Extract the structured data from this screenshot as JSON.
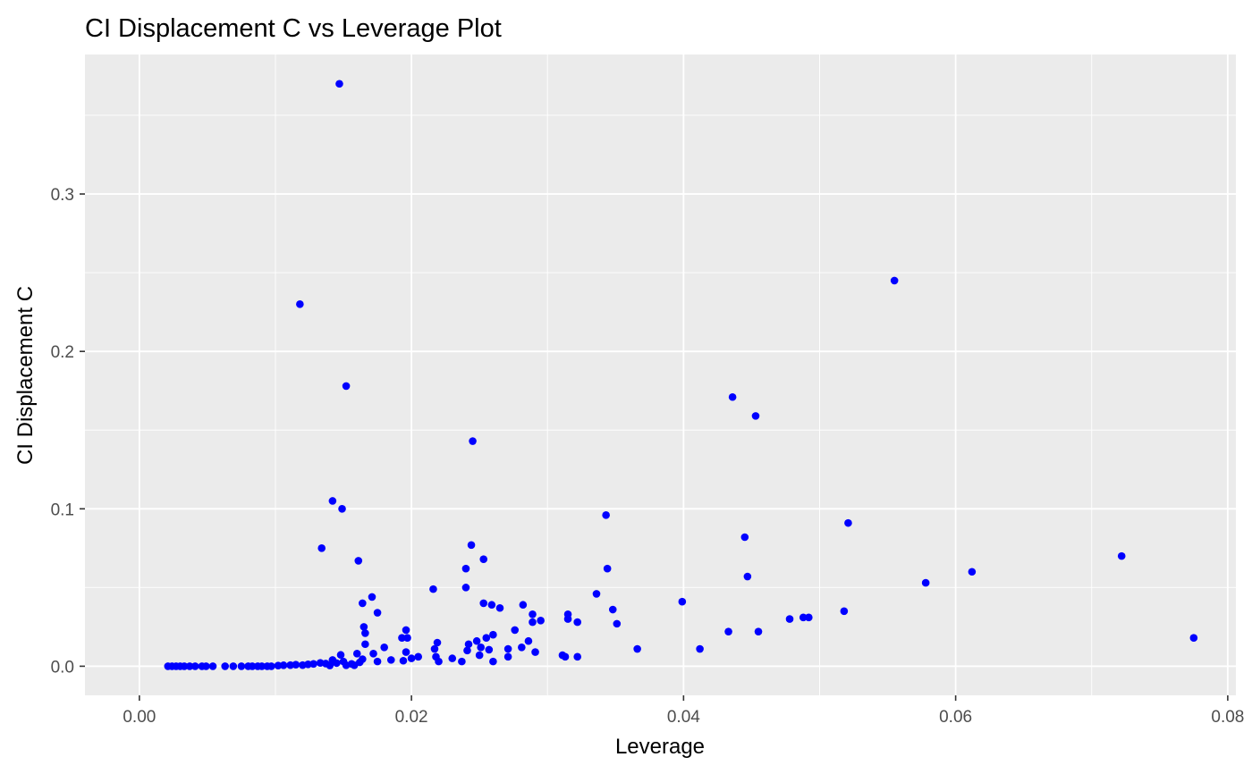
{
  "chart_data": {
    "type": "scatter",
    "title": "CI Displacement C vs Leverage Plot",
    "xlabel": "Leverage",
    "ylabel": "CI Displacement C",
    "xlim": [
      -0.004,
      0.0806
    ],
    "ylim": [
      -0.0185,
      0.3886
    ],
    "x_ticks": [
      0,
      0.02,
      0.04,
      0.06,
      0.08
    ],
    "x_tick_labels": [
      "0.00",
      "0.02",
      "0.04",
      "0.06",
      "0.08"
    ],
    "y_ticks": [
      0,
      0.1,
      0.2,
      0.3
    ],
    "y_tick_labels": [
      "0.0",
      "0.1",
      "0.2",
      "0.3"
    ],
    "grid": true,
    "legend": "none",
    "point_color": "#0000ff",
    "panel_background": "#ebebeb",
    "grid_color": "#ffffff",
    "series": [
      {
        "points": [
          [
            0.0021,
            0.0
          ],
          [
            0.0024,
            0.0
          ],
          [
            0.0027,
            0.0
          ],
          [
            0.003,
            0.0
          ],
          [
            0.0033,
            0.0
          ],
          [
            0.0037,
            0.0
          ],
          [
            0.0041,
            0.0
          ],
          [
            0.0046,
            0.0
          ],
          [
            0.0049,
            0.0
          ],
          [
            0.0054,
            0.0
          ],
          [
            0.0063,
            0.0
          ],
          [
            0.0069,
            0.0
          ],
          [
            0.0075,
            0.0
          ],
          [
            0.008,
            0.0
          ],
          [
            0.0083,
            0.0
          ],
          [
            0.0087,
            0.0
          ],
          [
            0.009,
            0.0
          ],
          [
            0.0094,
            0.0
          ],
          [
            0.0097,
            0.0
          ],
          [
            0.0102,
            0.0004
          ],
          [
            0.0106,
            0.0006
          ],
          [
            0.0111,
            0.0007
          ],
          [
            0.0115,
            0.001
          ],
          [
            0.012,
            0.0007
          ],
          [
            0.0124,
            0.0012
          ],
          [
            0.0128,
            0.0015
          ],
          [
            0.0133,
            0.0021
          ],
          [
            0.0137,
            0.0017
          ],
          [
            0.014,
            0.0005
          ],
          [
            0.0142,
            0.004
          ],
          [
            0.0145,
            0.002
          ],
          [
            0.0148,
            0.0072
          ],
          [
            0.015,
            0.003
          ],
          [
            0.0152,
            0.0006
          ],
          [
            0.0156,
            0.0015
          ],
          [
            0.0158,
            0.0006
          ],
          [
            0.016,
            0.008
          ],
          [
            0.0162,
            0.0025
          ],
          [
            0.0164,
            0.0045
          ],
          [
            0.0147,
            0.37
          ],
          [
            0.0118,
            0.23
          ],
          [
            0.0152,
            0.178
          ],
          [
            0.0142,
            0.105
          ],
          [
            0.0149,
            0.1
          ],
          [
            0.0134,
            0.075
          ],
          [
            0.0161,
            0.067
          ],
          [
            0.0164,
            0.04
          ],
          [
            0.0171,
            0.044
          ],
          [
            0.0175,
            0.034
          ],
          [
            0.0165,
            0.025
          ],
          [
            0.0166,
            0.021
          ],
          [
            0.0166,
            0.014
          ],
          [
            0.0172,
            0.008
          ],
          [
            0.0175,
            0.003
          ],
          [
            0.018,
            0.012
          ],
          [
            0.0185,
            0.004
          ],
          [
            0.0193,
            0.018
          ],
          [
            0.0196,
            0.023
          ],
          [
            0.0197,
            0.018
          ],
          [
            0.0196,
            0.009
          ],
          [
            0.0194,
            0.0035
          ],
          [
            0.02,
            0.005
          ],
          [
            0.0205,
            0.006
          ],
          [
            0.0216,
            0.049
          ],
          [
            0.0217,
            0.011
          ],
          [
            0.0219,
            0.015
          ],
          [
            0.0218,
            0.006
          ],
          [
            0.022,
            0.003
          ],
          [
            0.023,
            0.005
          ],
          [
            0.0237,
            0.003
          ],
          [
            0.024,
            0.05
          ],
          [
            0.024,
            0.062
          ],
          [
            0.0241,
            0.01
          ],
          [
            0.0242,
            0.014
          ],
          [
            0.0244,
            0.077
          ],
          [
            0.0245,
            0.143
          ],
          [
            0.0248,
            0.016
          ],
          [
            0.025,
            0.007
          ],
          [
            0.0251,
            0.012
          ],
          [
            0.0253,
            0.068
          ],
          [
            0.0253,
            0.04
          ],
          [
            0.0255,
            0.018
          ],
          [
            0.0257,
            0.0105
          ],
          [
            0.0259,
            0.039
          ],
          [
            0.026,
            0.02
          ],
          [
            0.026,
            0.003
          ],
          [
            0.0265,
            0.037
          ],
          [
            0.0271,
            0.011
          ],
          [
            0.0271,
            0.006
          ],
          [
            0.0276,
            0.023
          ],
          [
            0.0281,
            0.012
          ],
          [
            0.0282,
            0.039
          ],
          [
            0.0286,
            0.016
          ],
          [
            0.0289,
            0.033
          ],
          [
            0.0289,
            0.028
          ],
          [
            0.0291,
            0.009
          ],
          [
            0.0295,
            0.029
          ],
          [
            0.0311,
            0.007
          ],
          [
            0.0313,
            0.006
          ],
          [
            0.0315,
            0.033
          ],
          [
            0.0315,
            0.03
          ],
          [
            0.0322,
            0.028
          ],
          [
            0.0322,
            0.006
          ],
          [
            0.0336,
            0.046
          ],
          [
            0.0343,
            0.096
          ],
          [
            0.0344,
            0.062
          ],
          [
            0.0348,
            0.036
          ],
          [
            0.0351,
            0.027
          ],
          [
            0.0366,
            0.011
          ],
          [
            0.0399,
            0.041
          ],
          [
            0.0412,
            0.011
          ],
          [
            0.0433,
            0.022
          ],
          [
            0.0436,
            0.171
          ],
          [
            0.0445,
            0.082
          ],
          [
            0.0447,
            0.057
          ],
          [
            0.0453,
            0.159
          ],
          [
            0.0455,
            0.022
          ],
          [
            0.0478,
            0.03
          ],
          [
            0.0488,
            0.031
          ],
          [
            0.0492,
            0.031
          ],
          [
            0.0518,
            0.035
          ],
          [
            0.0521,
            0.091
          ],
          [
            0.0555,
            0.245
          ],
          [
            0.0578,
            0.053
          ],
          [
            0.0612,
            0.06
          ],
          [
            0.0722,
            0.07
          ],
          [
            0.0775,
            0.018
          ]
        ]
      }
    ]
  }
}
